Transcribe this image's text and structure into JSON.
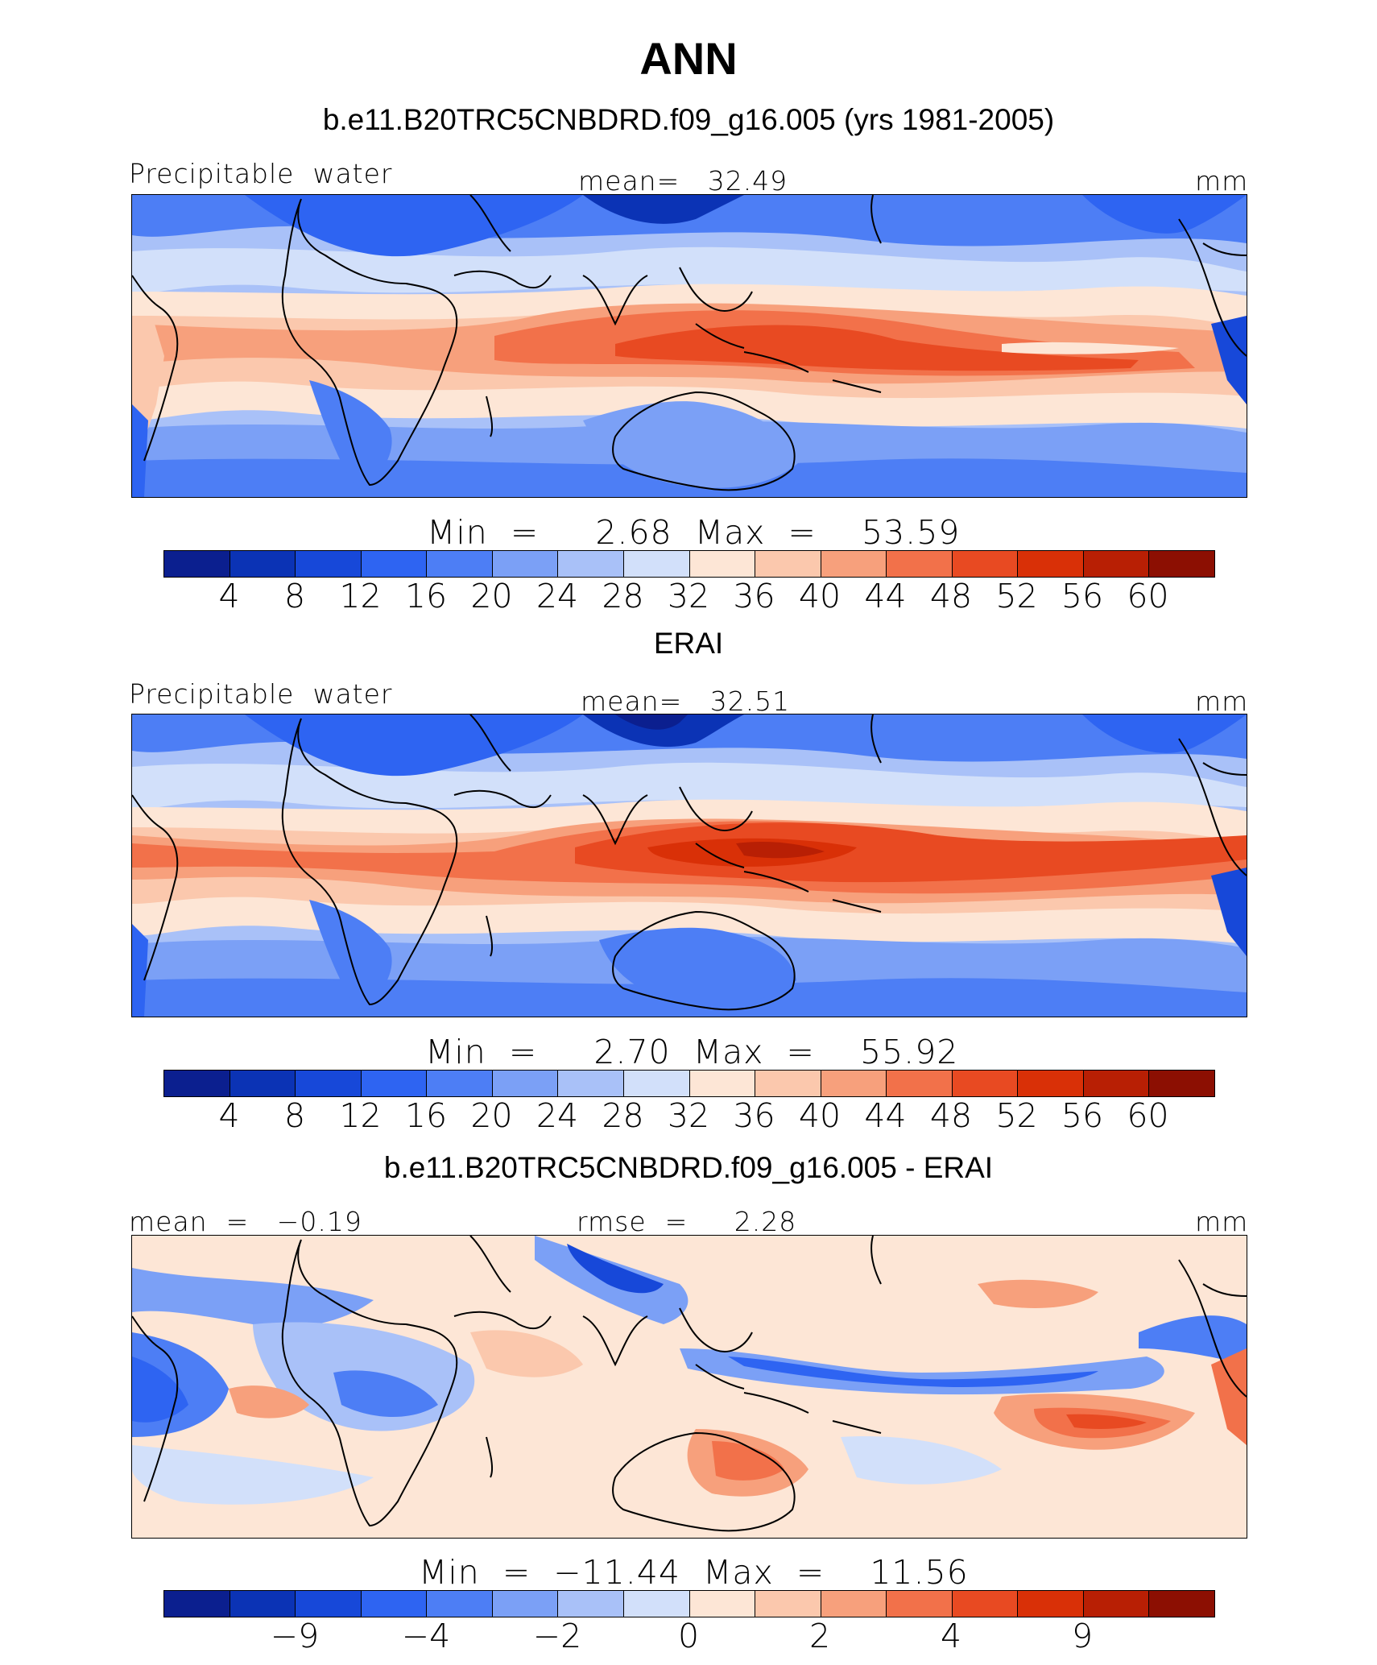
{
  "title": "ANN",
  "units": "mm",
  "palette": [
    "#0b1f8f",
    "#0b33b5",
    "#1748d9",
    "#2e64f2",
    "#4d7ef5",
    "#7ba0f6",
    "#a9c1f8",
    "#d2e0fa",
    "#fde6d6",
    "#fbc8ad",
    "#f7a07c",
    "#f2714a",
    "#e84a22",
    "#d93007",
    "#b81f04",
    "#8c0f02"
  ],
  "panels": [
    {
      "title": "b.e11.B20TRC5CNBDRD.f09_g16.005 (yrs 1981-2005)",
      "left_label": "Precipitable  water",
      "center_label": "mean=   32.49",
      "right_label": "mm",
      "stats": "Min  =     2.68  Max  =    53.59",
      "cbar_labels": [
        "4",
        "8",
        "12",
        "16",
        "20",
        "24",
        "28",
        "32",
        "36",
        "40",
        "44",
        "48",
        "52",
        "56",
        "60"
      ]
    },
    {
      "title": "ERAI",
      "left_label": "Precipitable  water",
      "center_label": "mean=   32.51",
      "right_label": "mm",
      "stats": "Min  =     2.70  Max  =    55.92",
      "cbar_labels": [
        "4",
        "8",
        "12",
        "16",
        "20",
        "24",
        "28",
        "32",
        "36",
        "40",
        "44",
        "48",
        "52",
        "56",
        "60"
      ]
    },
    {
      "title": "b.e11.B20TRC5CNBDRD.f09_g16.005 - ERAI",
      "left_label": "mean  =   −0.19",
      "center_label": "rmse  =     2.28",
      "right_label": "mm",
      "stats": "Min  =  −11.44  Max  =    11.56",
      "cbar_labels": [
        "−9",
        "−4",
        "−2",
        "0",
        "2",
        "4",
        "9"
      ]
    }
  ]
}
